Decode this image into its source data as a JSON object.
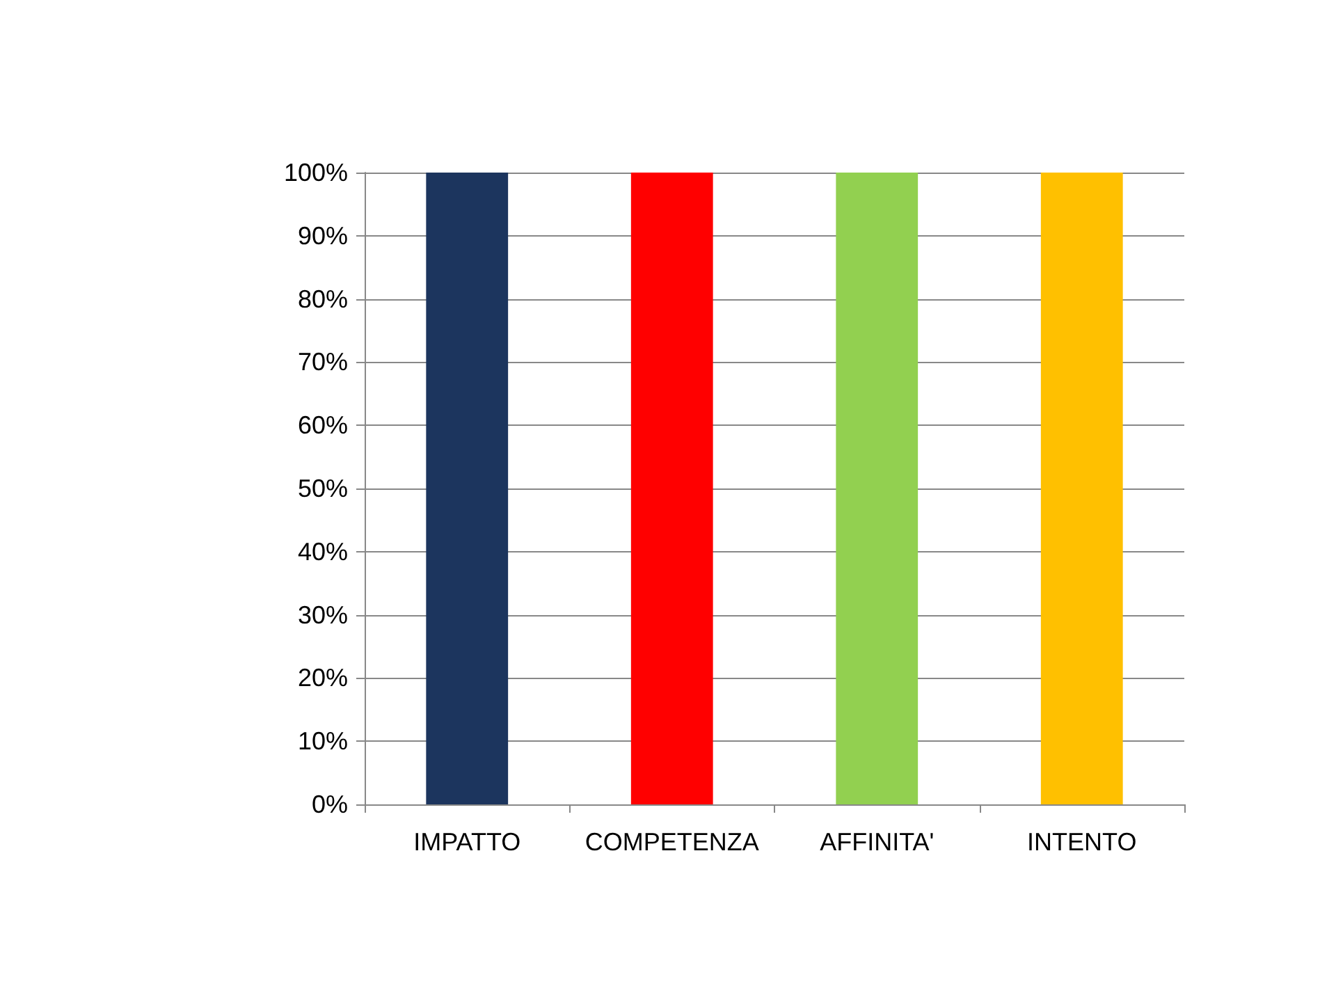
{
  "chart_data": {
    "type": "bar",
    "categories": [
      "IMPATTO",
      "COMPETENZA",
      "AFFINITA'",
      "INTENTO"
    ],
    "values": [
      100,
      100,
      100,
      100
    ],
    "colors": [
      "#1c355e",
      "#ff0000",
      "#92d050",
      "#ffc000"
    ],
    "ylim": [
      0,
      100
    ],
    "yticks": [
      {
        "value": 0,
        "label": "0%"
      },
      {
        "value": 10,
        "label": "10%"
      },
      {
        "value": 20,
        "label": "20%"
      },
      {
        "value": 30,
        "label": "30%"
      },
      {
        "value": 40,
        "label": "40%"
      },
      {
        "value": 50,
        "label": "50%"
      },
      {
        "value": 60,
        "label": "60%"
      },
      {
        "value": 70,
        "label": "70%"
      },
      {
        "value": 80,
        "label": "80%"
      },
      {
        "value": 90,
        "label": "90%"
      },
      {
        "value": 100,
        "label": "100%"
      }
    ],
    "grid": "y"
  }
}
